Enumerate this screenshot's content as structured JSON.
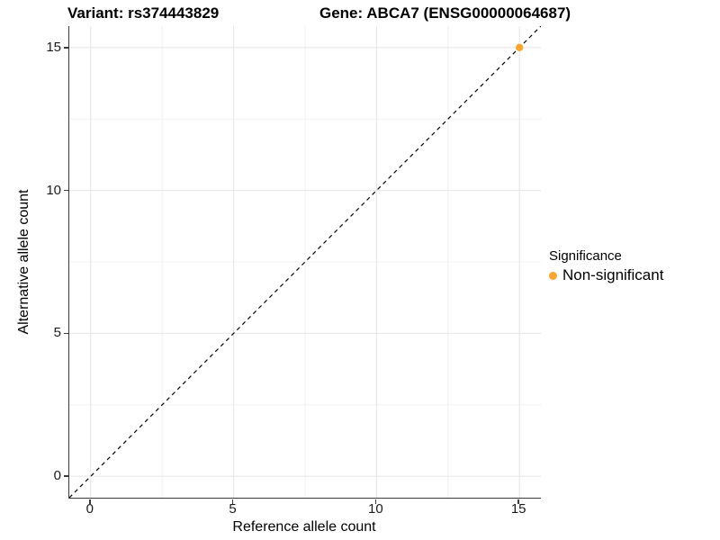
{
  "figure": {
    "title_variant": "Variant: rs374443829",
    "title_gene": "Gene: ABCA7 (ENSG00000064687)"
  },
  "legend": {
    "title": "Significance",
    "items": [
      {
        "label": "Non-significant",
        "color": "#F9A531",
        "marker": "dot-icon"
      }
    ]
  },
  "colors": {
    "background": "#ffffff",
    "axis_line": "#3a3a3a",
    "grid_major": "#e4e4e4",
    "grid_minor": "#f0f0f0",
    "reference_line": "#000000",
    "point": "#F9A531",
    "text": "#000000"
  },
  "chart_data": {
    "type": "scatter",
    "title": "Variant: rs374443829    Gene: ABCA7 (ENSG00000064687)",
    "xlabel": "Reference allele count",
    "ylabel": "Alternative allele count",
    "xlim": [
      -0.75,
      15.75
    ],
    "ylim": [
      -0.75,
      15.75
    ],
    "x_ticks": [
      0,
      5,
      10,
      15
    ],
    "y_ticks": [
      0,
      5,
      10,
      15
    ],
    "x_minor_ticks": [
      2.5,
      7.5,
      12.5
    ],
    "y_minor_ticks": [
      2.5,
      7.5,
      12.5
    ],
    "grid": "major+minor",
    "legend_position": "right",
    "reference_line": {
      "kind": "identity",
      "slope": 1,
      "intercept": 0,
      "style": "dashed",
      "color": "#000000"
    },
    "series": [
      {
        "name": "Non-significant",
        "color": "#F9A531",
        "points": [
          {
            "x": 15,
            "y": 15
          }
        ]
      }
    ]
  }
}
